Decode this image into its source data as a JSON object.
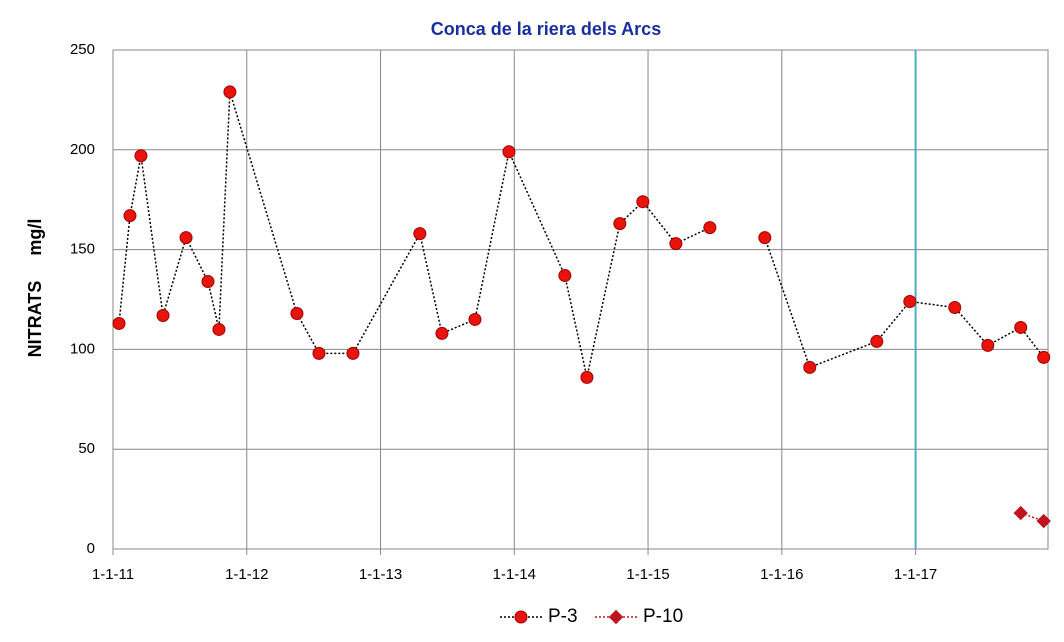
{
  "chart_data": {
    "type": "line",
    "title": "Conca de la riera dels Arcs",
    "ylabel": "NITRATS     mg/l",
    "xlim": [
      2011,
      2017.99
    ],
    "xticks": [
      {
        "value": 2011,
        "label": "1-1-11"
      },
      {
        "value": 2012,
        "label": "1-1-12"
      },
      {
        "value": 2013,
        "label": "1-1-13"
      },
      {
        "value": 2014,
        "label": "1-1-14"
      },
      {
        "value": 2015,
        "label": "1-1-15"
      },
      {
        "value": 2016,
        "label": "1-1-16"
      },
      {
        "value": 2017,
        "label": "1-1-17"
      }
    ],
    "ylim": [
      0,
      250
    ],
    "yticks": [
      0,
      50,
      100,
      150,
      200,
      250
    ],
    "grid": true,
    "legend": "bottom",
    "reference_line": {
      "x": 2017,
      "color": "#4bacc6"
    },
    "series": [
      {
        "name": "P-3",
        "color": "#e8140c",
        "line_color": "#000000",
        "marker": "circle",
        "x": [
          2011.045,
          2011.127,
          2011.209,
          2011.374,
          2011.546,
          2011.71,
          2011.792,
          2011.874,
          2012.375,
          2012.54,
          2012.794,
          2013.294,
          2013.459,
          2013.706,
          2013.96,
          2014.378,
          2014.543,
          2014.789,
          2014.961,
          2015.208,
          2015.462,
          2015.7,
          2015.873,
          2016.209,
          2016.71,
          2016.957,
          2017.293,
          2017.54,
          2017.786,
          2017.958
        ],
        "values": [
          113,
          167,
          197,
          117,
          156,
          134,
          110,
          229,
          118,
          98,
          98,
          158,
          108,
          115,
          199,
          137,
          86,
          163,
          174,
          153,
          161,
          null,
          156,
          91,
          104,
          124,
          121,
          102,
          111,
          96
        ]
      },
      {
        "name": "P-10",
        "color": "#c0141c",
        "line_color": "#c0141c",
        "marker": "diamond",
        "x": [
          2017.786,
          2017.958
        ],
        "values": [
          18,
          14
        ]
      }
    ]
  }
}
